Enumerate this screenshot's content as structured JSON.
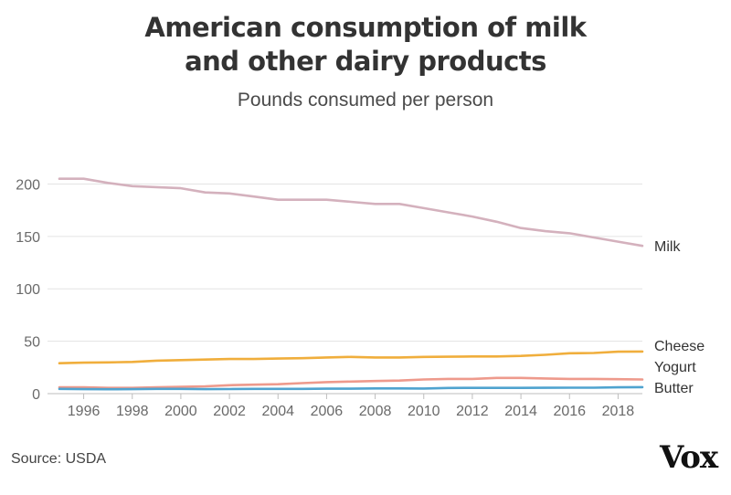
{
  "header": {
    "title_line1": "American consumption of milk",
    "title_line2": "and other dairy products",
    "subtitle": "Pounds consumed per person"
  },
  "footer": {
    "source": "Source: USDA",
    "logo": "Vox"
  },
  "chart_data": {
    "type": "line",
    "title": "American consumption of milk and other dairy products",
    "subtitle": "Pounds consumed per person",
    "xlabel": "",
    "ylabel": "",
    "xlim": [
      1995,
      2019
    ],
    "ylim": [
      0,
      210
    ],
    "x_ticks": [
      1996,
      1998,
      2000,
      2002,
      2004,
      2006,
      2008,
      2010,
      2012,
      2014,
      2016,
      2018
    ],
    "y_ticks": [
      0,
      50,
      100,
      150,
      200
    ],
    "grid": "horizontal",
    "legend": "direct labels at right end of lines",
    "x": [
      1995,
      1996,
      1997,
      1998,
      1999,
      2000,
      2001,
      2002,
      2003,
      2004,
      2005,
      2006,
      2007,
      2008,
      2009,
      2010,
      2011,
      2012,
      2013,
      2014,
      2015,
      2016,
      2017,
      2018,
      2019
    ],
    "series": [
      {
        "name": "Milk",
        "color": "#d4b1bd",
        "values": [
          205,
          205,
          201,
          198,
          197,
          196,
          192,
          191,
          188,
          185,
          185,
          185,
          183,
          181,
          181,
          177,
          173,
          169,
          164,
          158,
          155,
          153,
          149,
          145,
          141
        ]
      },
      {
        "name": "Cheese",
        "color": "#f0ae3c",
        "values": [
          29,
          29.5,
          29.8,
          30.2,
          31.5,
          32,
          32.5,
          33,
          33,
          33.5,
          33.8,
          34.5,
          35,
          34.5,
          34.5,
          35,
          35.2,
          35.5,
          35.5,
          36,
          37,
          38.5,
          38.8,
          40,
          40.2
        ]
      },
      {
        "name": "Yogurt",
        "color": "#ee9a8c",
        "values": [
          6,
          6,
          5.5,
          5.5,
          6,
          6.5,
          7,
          8,
          8.5,
          9,
          10,
          11,
          11.5,
          12,
          12.5,
          13.5,
          14,
          14,
          15,
          15,
          14.5,
          14,
          14,
          13.8,
          13.5
        ]
      },
      {
        "name": "Butter",
        "color": "#4fa3cf",
        "values": [
          4.5,
          4.3,
          4.2,
          4.3,
          4.5,
          4.5,
          4.3,
          4.4,
          4.5,
          4.5,
          4.5,
          4.7,
          4.7,
          5,
          5,
          4.9,
          5.4,
          5.5,
          5.5,
          5.5,
          5.6,
          5.7,
          5.7,
          6,
          6.2
        ]
      }
    ]
  }
}
